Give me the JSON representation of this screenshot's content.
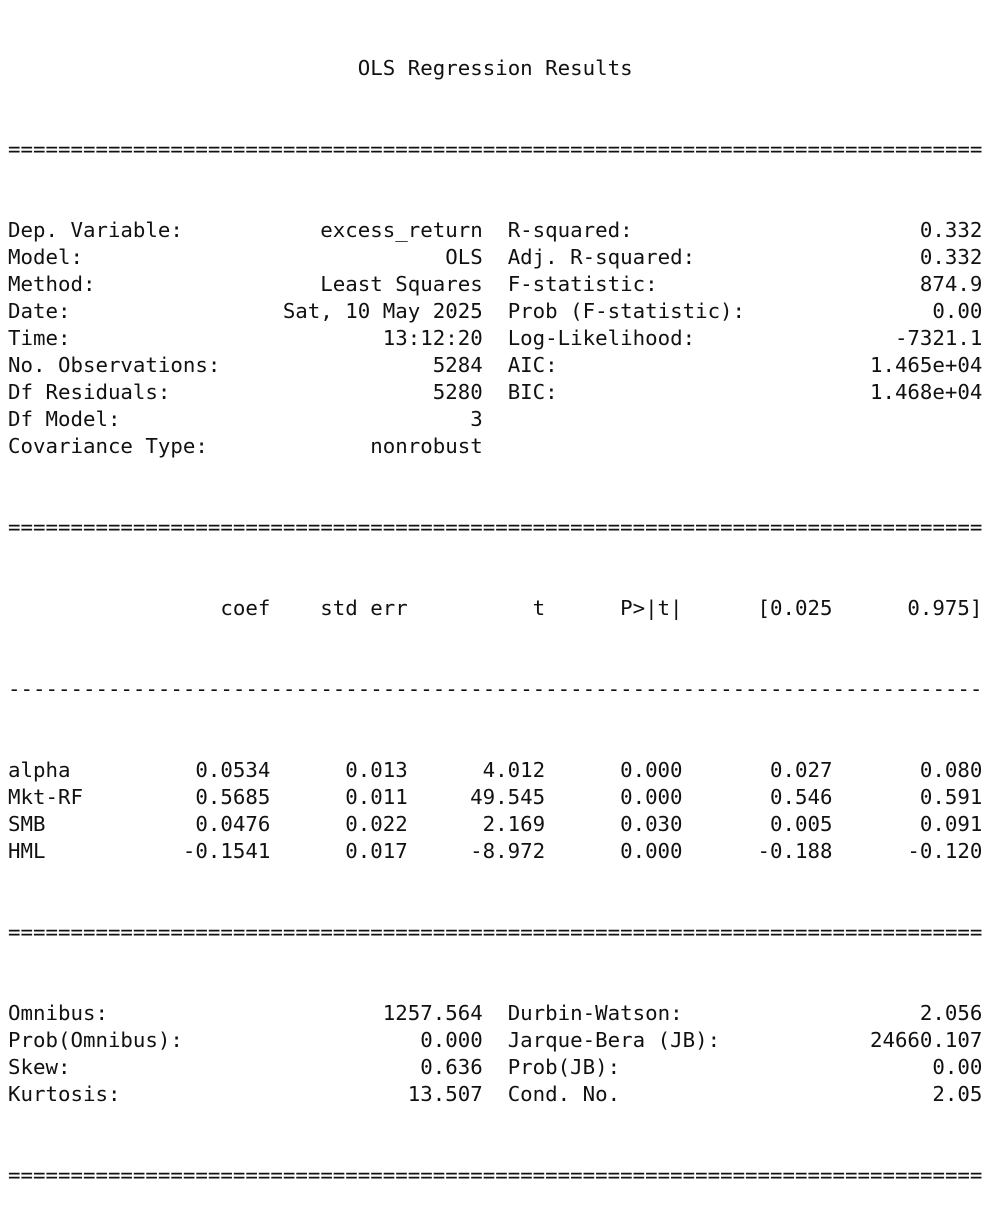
{
  "title": "OLS Regression Results",
  "sep_double": "==============================================================================",
  "sep_single": "------------------------------------------------------------------------------",
  "model_info": {
    "left": [
      {
        "label": "Dep. Variable:",
        "value": "excess_return"
      },
      {
        "label": "Model:",
        "value": "OLS"
      },
      {
        "label": "Method:",
        "value": "Least Squares"
      },
      {
        "label": "Date:",
        "value": "Sat, 10 May 2025"
      },
      {
        "label": "Time:",
        "value": "13:12:20"
      },
      {
        "label": "No. Observations:",
        "value": "5284"
      },
      {
        "label": "Df Residuals:",
        "value": "5280"
      },
      {
        "label": "Df Model:",
        "value": "3"
      },
      {
        "label": "Covariance Type:",
        "value": "nonrobust"
      }
    ],
    "right": [
      {
        "label": "R-squared:",
        "value": "0.332"
      },
      {
        "label": "Adj. R-squared:",
        "value": "0.332"
      },
      {
        "label": "F-statistic:",
        "value": "874.9"
      },
      {
        "label": "Prob (F-statistic):",
        "value": "0.00"
      },
      {
        "label": "Log-Likelihood:",
        "value": "-7321.1"
      },
      {
        "label": "AIC:",
        "value": "1.465e+04"
      },
      {
        "label": "BIC:",
        "value": "1.468e+04"
      }
    ]
  },
  "coef_table": {
    "headers": [
      "",
      "coef",
      "std err",
      "t",
      "P>|t|",
      "[0.025",
      "0.975]"
    ],
    "rows": [
      [
        "alpha",
        "0.0534",
        "0.013",
        "4.012",
        "0.000",
        "0.027",
        "0.080"
      ],
      [
        "Mkt-RF",
        "0.5685",
        "0.011",
        "49.545",
        "0.000",
        "0.546",
        "0.591"
      ],
      [
        "SMB",
        "0.0476",
        "0.022",
        "2.169",
        "0.030",
        "0.005",
        "0.091"
      ],
      [
        "HML",
        "-0.1541",
        "0.017",
        "-8.972",
        "0.000",
        "-0.188",
        "-0.120"
      ]
    ]
  },
  "diagnostics": {
    "left": [
      {
        "label": "Omnibus:",
        "value": "1257.564"
      },
      {
        "label": "Prob(Omnibus):",
        "value": "0.000"
      },
      {
        "label": "Skew:",
        "value": "0.636"
      },
      {
        "label": "Kurtosis:",
        "value": "13.507"
      }
    ],
    "right": [
      {
        "label": "Durbin-Watson:",
        "value": "2.056"
      },
      {
        "label": "Jarque-Bera (JB):",
        "value": "24660.107"
      },
      {
        "label": "Prob(JB):",
        "value": "0.00"
      },
      {
        "label": "Cond. No.",
        "value": "2.05"
      }
    ]
  }
}
